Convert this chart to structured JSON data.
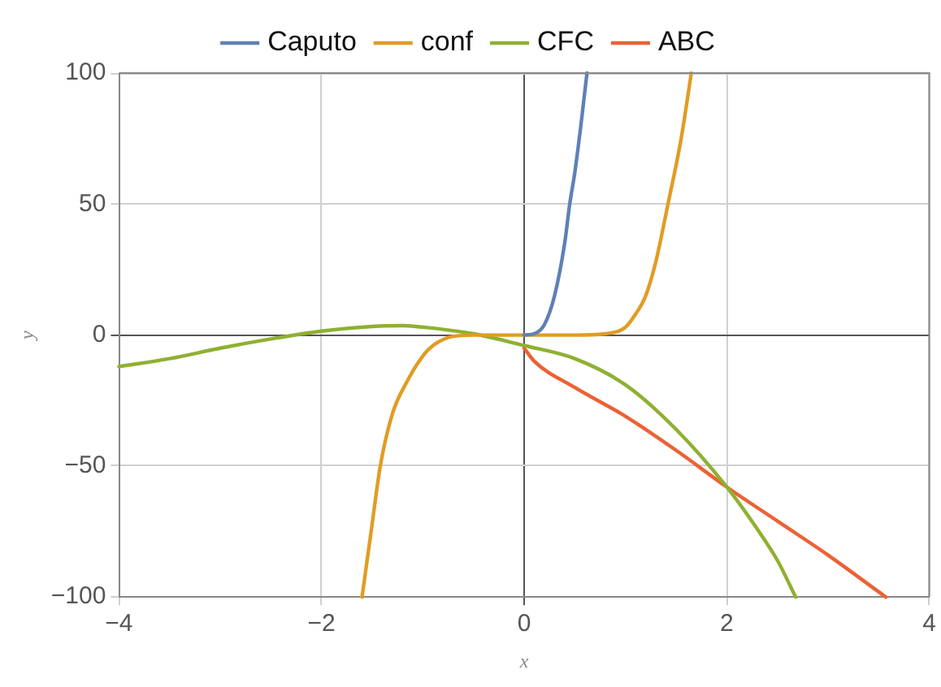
{
  "chart_data": {
    "type": "line",
    "xlabel": "x",
    "ylabel": "y",
    "xlim": [
      -4,
      4
    ],
    "ylim": [
      -100,
      100
    ],
    "xticks": [
      -4,
      -2,
      0,
      2,
      4
    ],
    "yticks": [
      -100,
      -50,
      0,
      50,
      100
    ],
    "grid": true,
    "legend": "top",
    "marker": "none",
    "line_style": "solid",
    "series": [
      {
        "name": "Caputo",
        "color": "#5e81b5",
        "x": [
          0,
          0.1,
          0.2,
          0.3,
          0.4,
          0.45,
          0.5,
          0.56,
          0.62
        ],
        "values": [
          0,
          0.5,
          4,
          15,
          35,
          50,
          62,
          80,
          100
        ]
      },
      {
        "name": "conf",
        "color": "#e19c24",
        "x": [
          -1.6,
          -1.5,
          -1.42,
          -1.3,
          -1.16,
          -1.0,
          -0.9,
          -0.7,
          -0.5,
          0,
          0.5,
          0.8,
          1.0,
          1.1,
          1.2,
          1.3,
          1.42,
          1.55,
          1.65
        ],
        "values": [
          -100,
          -72,
          -50,
          -30,
          -18,
          -8,
          -4,
          -0.5,
          0,
          0,
          0,
          0.5,
          3,
          8,
          15,
          28,
          50,
          75,
          100
        ]
      },
      {
        "name": "CFC",
        "color": "#8fb032",
        "x": [
          -4,
          -3.5,
          -3,
          -2.5,
          -2,
          -1.5,
          -1.2,
          -1,
          -0.5,
          0,
          0.5,
          1,
          1.5,
          2,
          2.3,
          2.5,
          2.68
        ],
        "values": [
          -12,
          -9,
          -5,
          -1.5,
          1.5,
          3.3,
          3.6,
          3,
          0.5,
          -4,
          -9,
          -19,
          -36,
          -58,
          -74,
          -86,
          -100
        ]
      },
      {
        "name": "ABC",
        "color": "#eb6235",
        "x": [
          0,
          0.1,
          0.5,
          1,
          1.5,
          2,
          2.5,
          3,
          3.57
        ],
        "values": [
          -5,
          -10,
          -20,
          -31,
          -44,
          -58,
          -71,
          -84,
          -100
        ]
      }
    ]
  }
}
